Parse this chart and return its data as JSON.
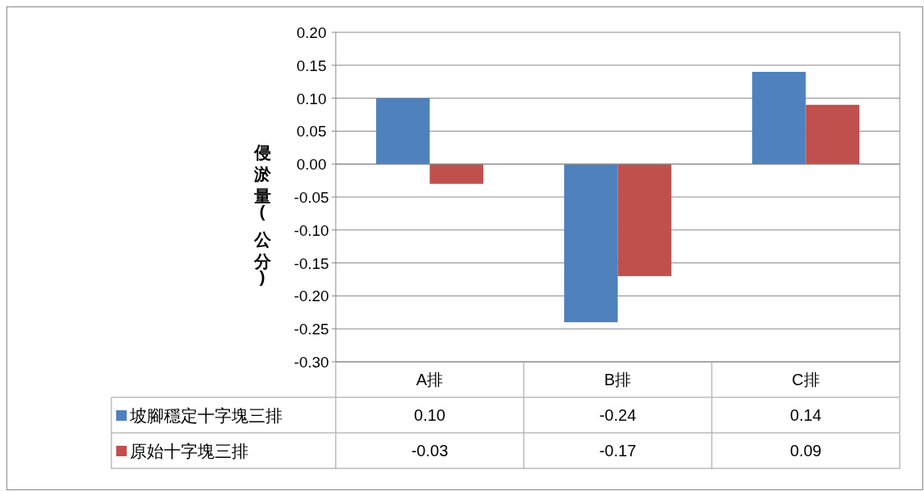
{
  "chart_data": {
    "type": "bar",
    "ylabel": "侵淤量(公分)",
    "categories": [
      "A排",
      "B排",
      "C排"
    ],
    "series": [
      {
        "name": "坡腳穩定十字塊三排",
        "color": "#4f81bd",
        "values": [
          0.1,
          -0.24,
          0.14
        ],
        "value_labels": [
          "0.10",
          "-0.24",
          "0.14"
        ]
      },
      {
        "name": "原始十字塊三排",
        "color": "#c0504d",
        "values": [
          -0.03,
          -0.17,
          0.09
        ],
        "value_labels": [
          "-0.03",
          "-0.17",
          "0.09"
        ]
      }
    ],
    "ylim": [
      -0.3,
      0.2
    ],
    "yticks": [
      {
        "value": -0.3,
        "label": "-0.30"
      },
      {
        "value": -0.25,
        "label": "-0.25"
      },
      {
        "value": -0.2,
        "label": "-0.20"
      },
      {
        "value": -0.15,
        "label": "-0.15"
      },
      {
        "value": -0.1,
        "label": "-0.10"
      },
      {
        "value": -0.05,
        "label": "-0.05"
      },
      {
        "value": 0,
        "label": "0.00"
      },
      {
        "value": 0.05,
        "label": "0.05"
      },
      {
        "value": 0.1,
        "label": "0.10"
      },
      {
        "value": 0.15,
        "label": "0.15"
      },
      {
        "value": 0.2,
        "label": "0.20"
      }
    ],
    "grid": "y",
    "legend": "bottom"
  }
}
